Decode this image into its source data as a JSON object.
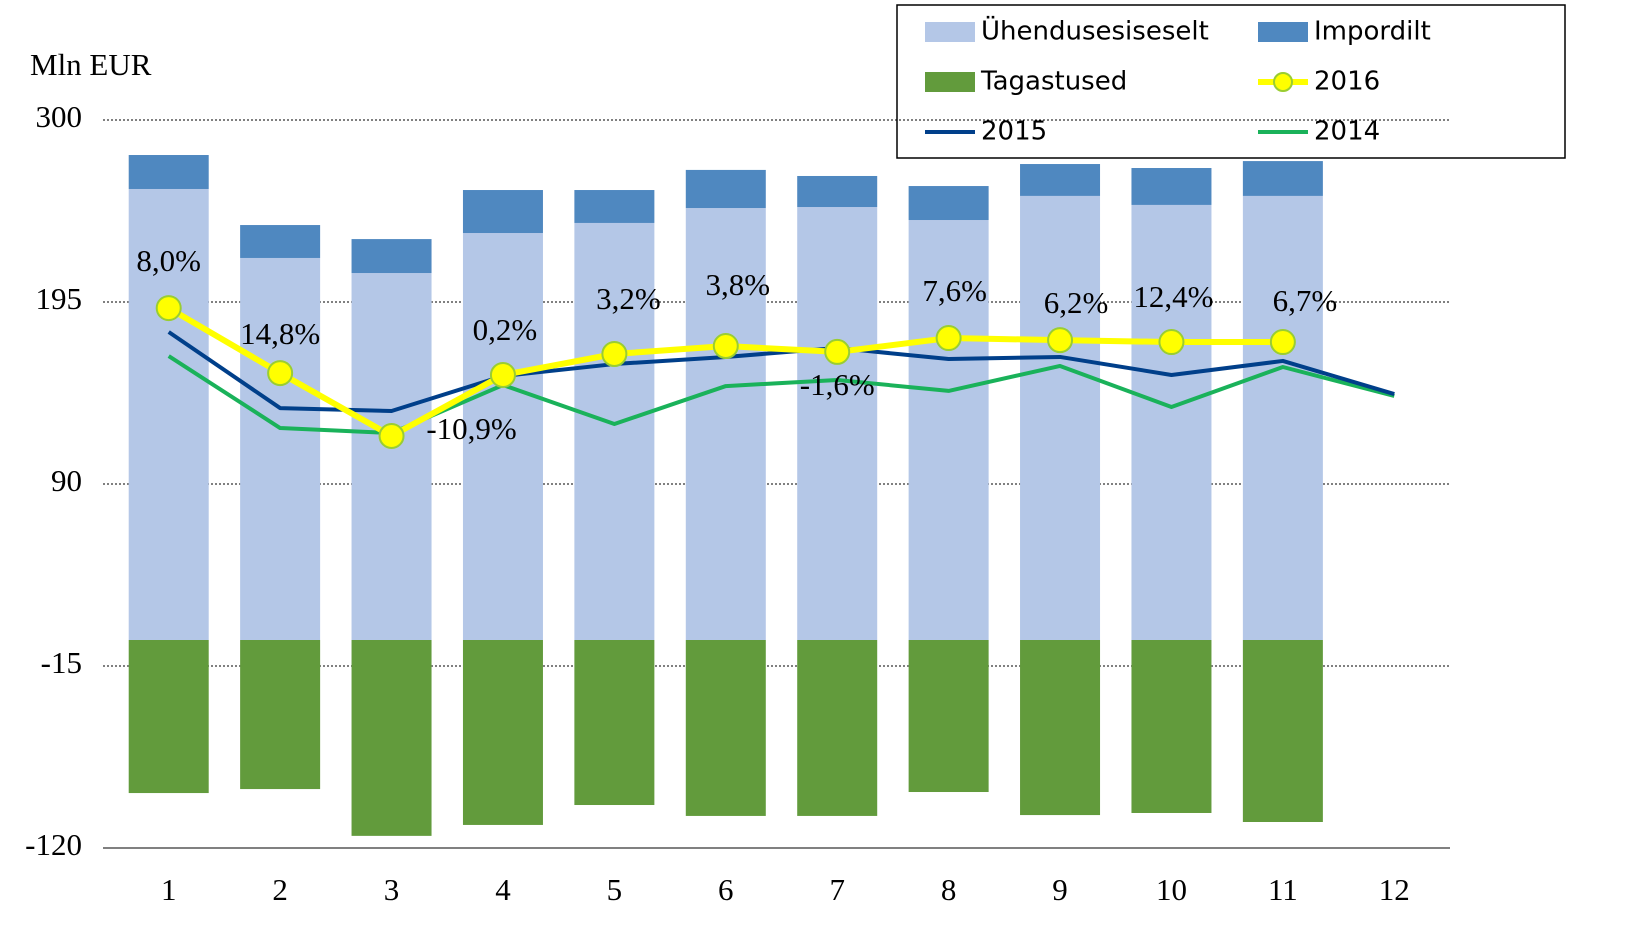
{
  "chart_data": {
    "type": "bar",
    "y_label": "Mln EUR",
    "categories": [
      "1",
      "2",
      "3",
      "4",
      "5",
      "6",
      "7",
      "8",
      "9",
      "10",
      "11",
      "12"
    ],
    "series": [
      {
        "name": "Ühendusesiseselt",
        "type": "bar",
        "color": "#b4c7e7",
        "values": [
          260.2,
          220.4,
          211.7,
          234.8,
          240.6,
          249.2,
          249.8,
          242.3,
          256.2,
          251,
          256.2,
          null
        ]
      },
      {
        "name": "Impordilt",
        "type": "bar",
        "color": "#4f88c0",
        "values": [
          19.6,
          19,
          19.6,
          24.8,
          19,
          22,
          17.9,
          19.6,
          18.4,
          21.3,
          20.1,
          null
        ]
      },
      {
        "name": "Tagastused",
        "type": "bar",
        "color": "#629b3c",
        "values": [
          -88.3,
          -86,
          -113,
          -106.7,
          -95.2,
          -101.5,
          -101.5,
          -87.7,
          -101,
          -99.8,
          -105,
          null
        ]
      },
      {
        "name": "2016",
        "type": "line",
        "color": "#ffff00",
        "marker": true,
        "values": [
          191.5,
          154,
          117.7,
          152.9,
          165,
          169.6,
          166.2,
          174.2,
          173,
          171.9,
          171.9,
          null
        ]
      },
      {
        "name": "2015",
        "type": "line",
        "color": "#003f8a",
        "values": [
          177.7,
          133.8,
          132.1,
          152.3,
          159.2,
          163.3,
          168.5,
          162.1,
          163.3,
          152.9,
          161,
          141.9
        ]
      },
      {
        "name": "2014",
        "type": "line",
        "color": "#1ab25a",
        "values": [
          163.8,
          122.3,
          119.4,
          147.1,
          124.6,
          146.5,
          150,
          143.7,
          158.1,
          134.4,
          157.5,
          140.8
        ]
      }
    ],
    "annotations": [
      "8,0%",
      "14,8%",
      "-10,9%",
      "0,2%",
      "3,2%",
      "3,8%",
      "-1,6%",
      "7,6%",
      "6,2%",
      "12,4%",
      "6,7%"
    ],
    "ylim": [
      -120,
      300
    ],
    "yticks": [
      -120,
      -15,
      90,
      195,
      300
    ],
    "grid": true
  }
}
